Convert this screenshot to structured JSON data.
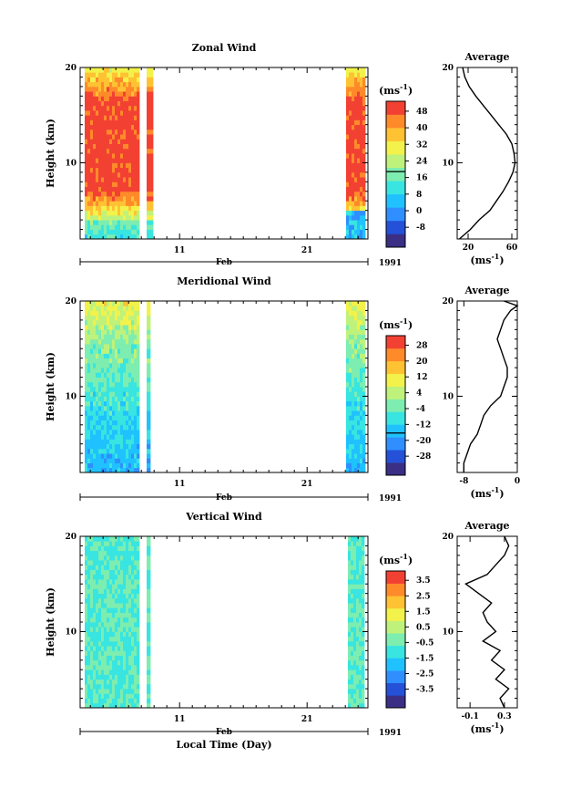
{
  "chart_data": [
    {
      "type": "heatmap",
      "title": "Zonal Wind",
      "ylabel": "Height (km)",
      "y_ticks": [
        "20",
        "10"
      ],
      "ylim": [
        2,
        20
      ],
      "x_ticks": [
        "11",
        "21"
      ],
      "month": "Feb",
      "year": "1991",
      "colorbar": {
        "unit_label": "(ms",
        "unit_exp": "-1",
        "unit_close": ")",
        "labels": [
          "48",
          "40",
          "32",
          "24",
          "16",
          "8",
          "0",
          "-8"
        ],
        "colors": [
          "#3a2f85",
          "#2451d8",
          "#2f8fff",
          "#1fc2ff",
          "#38e5e0",
          "#7dedb0",
          "#bff27a",
          "#f2f24a",
          "#ffc233",
          "#ff8a2a",
          "#f24133"
        ]
      },
      "average": {
        "title": "Average",
        "x_ticks": [
          "20",
          "60"
        ],
        "xlim": [
          10,
          65
        ],
        "xlabel": "(ms",
        "xlabel_exp": "-1",
        "xlabel_close": ")",
        "heights": [
          2,
          3,
          4,
          5,
          6,
          7,
          8,
          9,
          10,
          11,
          12,
          13,
          14,
          15,
          16,
          17,
          18,
          19,
          20
        ],
        "values": [
          12,
          22,
          30,
          40,
          46,
          52,
          57,
          61,
          63,
          62,
          60,
          55,
          48,
          41,
          34,
          27,
          21,
          17,
          15
        ]
      }
    },
    {
      "type": "heatmap",
      "title": "Meridional Wind",
      "ylabel": "Height (km)",
      "y_ticks": [
        "20",
        "10"
      ],
      "ylim": [
        2,
        20
      ],
      "x_ticks": [
        "11",
        "21"
      ],
      "month": "Feb",
      "year": "1991",
      "colorbar": {
        "unit_label": "(ms",
        "unit_exp": "-1",
        "unit_close": ")",
        "labels": [
          "28",
          "20",
          "12",
          "4",
          "-4",
          "-12",
          "-20",
          "-28"
        ],
        "colors": [
          "#3a2f85",
          "#2451d8",
          "#2f8fff",
          "#1fc2ff",
          "#38e5e0",
          "#7dedb0",
          "#bff27a",
          "#f2f24a",
          "#ffc233",
          "#ff8a2a",
          "#f24133"
        ]
      },
      "average": {
        "title": "Average",
        "x_ticks": [
          "-8",
          "0"
        ],
        "xlim": [
          -9,
          0
        ],
        "xlabel": "(ms",
        "xlabel_exp": "-1",
        "xlabel_close": ")",
        "heights": [
          2,
          3,
          4,
          5,
          6,
          7,
          8,
          9,
          10,
          11,
          12,
          13,
          14,
          15,
          16,
          17,
          18,
          19,
          19.5,
          20
        ],
        "values": [
          -8,
          -8,
          -7.5,
          -7,
          -6,
          -5.5,
          -5,
          -4,
          -2.5,
          -2,
          -1.5,
          -1.5,
          -2,
          -2.5,
          -3,
          -2.5,
          -2,
          -1,
          0,
          -2
        ]
      }
    },
    {
      "type": "heatmap",
      "title": "Vertical Wind",
      "ylabel": "Height (km)",
      "y_ticks": [
        "20",
        "10"
      ],
      "ylim": [
        2,
        20
      ],
      "x_ticks": [
        "11",
        "21"
      ],
      "month": "Feb",
      "year": "1991",
      "xlabel": "Local Time (Day)",
      "colorbar": {
        "unit_label": "(ms",
        "unit_exp": "-1",
        "unit_close": ")",
        "labels": [
          "3.5",
          "2.5",
          "1.5",
          "0.5",
          "-0.5",
          "-1.5",
          "-2.5",
          "-3.5"
        ],
        "colors": [
          "#3a2f85",
          "#2451d8",
          "#2f8fff",
          "#1fc2ff",
          "#38e5e0",
          "#7dedb0",
          "#bff27a",
          "#f2f24a",
          "#ffc233",
          "#ff8a2a",
          "#f24133"
        ]
      },
      "average": {
        "title": "Average",
        "x_ticks": [
          "-0.1",
          "0.3"
        ],
        "xlim": [
          -0.25,
          0.45
        ],
        "xlabel": "(ms",
        "xlabel_exp": "-1",
        "xlabel_close": ")",
        "heights": [
          2,
          3,
          4,
          5,
          6,
          7,
          8,
          9,
          10,
          11,
          12,
          13,
          14,
          15,
          16,
          17,
          18,
          19,
          20
        ],
        "values": [
          0.3,
          0.25,
          0.35,
          0.2,
          0.3,
          0.15,
          0.25,
          0.05,
          0.2,
          0.1,
          0.05,
          0.15,
          0.0,
          -0.15,
          0.1,
          0.2,
          0.3,
          0.35,
          0.3
        ]
      }
    }
  ]
}
